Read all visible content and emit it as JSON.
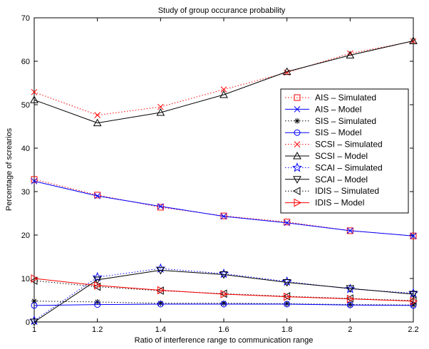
{
  "chart_data": {
    "type": "line",
    "title": "Study of group occurance probability",
    "xlabel": "Ratio of interference range to communication range",
    "ylabel": "Percentage of screarios",
    "xlim": [
      1,
      2.2
    ],
    "ylim": [
      0,
      70
    ],
    "xticks": [
      "1",
      "1.2",
      "1.4",
      "1.6",
      "1.8",
      "2",
      "2.2"
    ],
    "yticks": [
      "0",
      "10",
      "20",
      "30",
      "40",
      "50",
      "60",
      "70"
    ],
    "grid": false,
    "legend_position": "right",
    "x": [
      1,
      1.2,
      1.4,
      1.6,
      1.8,
      2,
      2.2
    ],
    "series": [
      {
        "name": "AIS – Simulated",
        "values": [
          32.8,
          29.2,
          26.4,
          24.4,
          23.0,
          21.0,
          19.8
        ],
        "color": "#ff0000",
        "dash": "dotted",
        "marker": "square"
      },
      {
        "name": "AIS – Model",
        "values": [
          32.4,
          29.0,
          26.6,
          24.3,
          22.8,
          21.0,
          19.8
        ],
        "color": "#0000ff",
        "dash": "solid",
        "marker": "x"
      },
      {
        "name": "SIS – Simulated",
        "values": [
          4.8,
          4.6,
          4.3,
          4.3,
          4.2,
          4.0,
          3.9
        ],
        "color": "#000000",
        "dash": "dotted",
        "marker": "asterisk"
      },
      {
        "name": "SIS – Model",
        "values": [
          3.8,
          4.0,
          4.1,
          4.1,
          4.1,
          3.9,
          3.8
        ],
        "color": "#0000ff",
        "dash": "solid",
        "marker": "circle"
      },
      {
        "name": "SCSI – Simulated",
        "values": [
          52.9,
          47.6,
          49.5,
          53.5,
          57.4,
          61.8,
          64.6
        ],
        "color": "#ff0000",
        "dash": "dotted",
        "marker": "x"
      },
      {
        "name": "SCSI – Model",
        "values": [
          51.1,
          45.8,
          48.2,
          52.3,
          57.6,
          61.4,
          64.7
        ],
        "color": "#000000",
        "dash": "solid",
        "marker": "triangle-up"
      },
      {
        "name": "SCAI – Simulated",
        "values": [
          0.3,
          10.3,
          12.3,
          11.1,
          9.3,
          7.6,
          6.6
        ],
        "color": "#0000ff",
        "dash": "dotted",
        "marker": "star"
      },
      {
        "name": "SCAI – Model",
        "values": [
          0.0,
          9.7,
          11.9,
          10.9,
          9.1,
          7.7,
          6.4
        ],
        "color": "#000000",
        "dash": "solid",
        "marker": "triangle-down"
      },
      {
        "name": "IDIS – Simulated",
        "values": [
          9.5,
          8.1,
          7.2,
          6.5,
          5.9,
          5.4,
          4.9
        ],
        "color": "#000000",
        "dash": "dotted",
        "marker": "triangle-left"
      },
      {
        "name": "IDIS – Model",
        "values": [
          10.0,
          8.4,
          7.3,
          6.4,
          5.8,
          5.3,
          4.8
        ],
        "color": "#ff0000",
        "dash": "solid",
        "marker": "triangle-right"
      }
    ]
  }
}
